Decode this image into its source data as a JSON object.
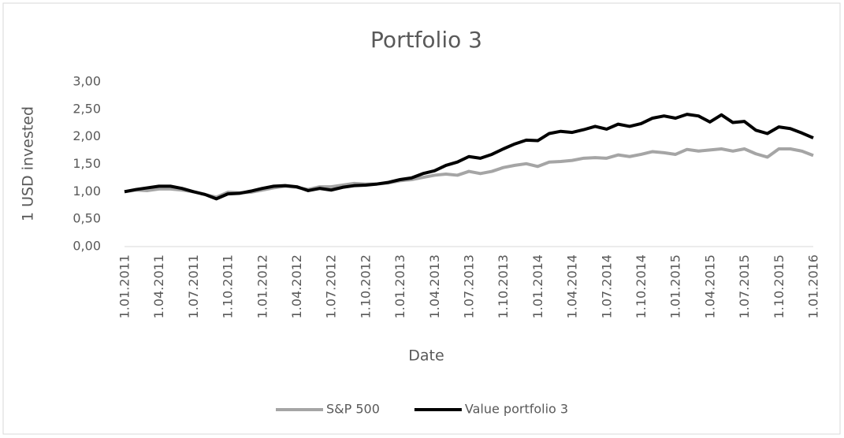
{
  "chart_data": {
    "type": "line",
    "title": "Portfolio 3",
    "xlabel": "Date",
    "ylabel": "1 USD invested",
    "categories": [
      "1.01.2011",
      null,
      null,
      "1.04.2011",
      null,
      null,
      "1.07.2011",
      null,
      null,
      "1.10.2011",
      null,
      null,
      "1.01.2012",
      null,
      null,
      "1.04.2012",
      null,
      null,
      "1.07.2012",
      null,
      null,
      "1.10.2012",
      null,
      null,
      "1.01.2013",
      null,
      null,
      "1.04.2013",
      null,
      null,
      "1.07.2013",
      null,
      null,
      "1.10.2013",
      null,
      null,
      "1.01.2014",
      null,
      null,
      "1.04.2014",
      null,
      null,
      "1.07.2014",
      null,
      null,
      "1.10.2014",
      null,
      null,
      "1.01.2015",
      null,
      null,
      "1.04.2015",
      null,
      null,
      "1.07.2015",
      null,
      null,
      "1.10.2015",
      null,
      null,
      "1.01.2016"
    ],
    "series": [
      {
        "name": "S&P 500",
        "color": "#a5a5a5",
        "values": [
          1.0,
          1.03,
          1.02,
          1.05,
          1.05,
          1.03,
          1.0,
          0.95,
          0.9,
          0.99,
          0.98,
          0.99,
          1.03,
          1.07,
          1.1,
          1.08,
          1.04,
          1.09,
          1.09,
          1.12,
          1.15,
          1.14,
          1.14,
          1.16,
          1.2,
          1.22,
          1.26,
          1.3,
          1.32,
          1.3,
          1.37,
          1.33,
          1.37,
          1.44,
          1.48,
          1.51,
          1.46,
          1.54,
          1.55,
          1.57,
          1.61,
          1.62,
          1.61,
          1.67,
          1.64,
          1.68,
          1.73,
          1.71,
          1.68,
          1.77,
          1.74,
          1.76,
          1.78,
          1.74,
          1.78,
          1.69,
          1.63,
          1.78,
          1.78,
          1.74,
          1.66
        ]
      },
      {
        "name": "Value portfolio 3",
        "color": "#000000",
        "values": [
          1.0,
          1.04,
          1.07,
          1.1,
          1.1,
          1.06,
          1.0,
          0.95,
          0.87,
          0.96,
          0.97,
          1.01,
          1.06,
          1.1,
          1.11,
          1.09,
          1.02,
          1.06,
          1.03,
          1.08,
          1.11,
          1.12,
          1.14,
          1.17,
          1.22,
          1.25,
          1.33,
          1.38,
          1.48,
          1.54,
          1.64,
          1.61,
          1.68,
          1.78,
          1.87,
          1.94,
          1.93,
          2.06,
          2.1,
          2.08,
          2.13,
          2.19,
          2.14,
          2.23,
          2.19,
          2.24,
          2.34,
          2.38,
          2.34,
          2.41,
          2.38,
          2.27,
          2.4,
          2.26,
          2.28,
          2.12,
          2.06,
          2.18,
          2.15,
          2.07,
          1.98
        ]
      }
    ],
    "ylim": [
      0,
      3
    ],
    "yticks": [
      {
        "value": 0,
        "label": "0,00"
      },
      {
        "value": 0.5,
        "label": "0,50"
      },
      {
        "value": 1,
        "label": "1,00"
      },
      {
        "value": 1.5,
        "label": "1,50"
      },
      {
        "value": 2,
        "label": "2,00"
      },
      {
        "value": 2.5,
        "label": "2,50"
      },
      {
        "value": 3,
        "label": "3,00"
      }
    ],
    "legend": "bottom"
  }
}
